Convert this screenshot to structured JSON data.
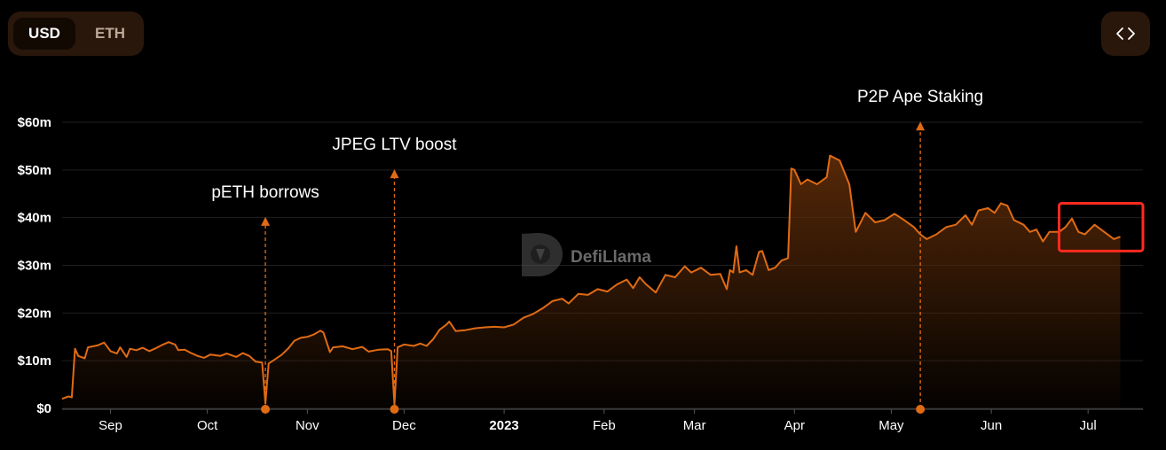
{
  "toggle": {
    "usd_label": "USD",
    "eth_label": "ETH",
    "selected": "USD"
  },
  "embed_icon": "code-brackets-icon",
  "watermark": {
    "text": "DefiLlama",
    "icon": "llama-logo-icon"
  },
  "colors": {
    "background": "#000000",
    "line": "#e06b14",
    "area_top": "#5a2a08",
    "highlight_box": "#ff2a1f"
  },
  "chart_data": {
    "type": "area",
    "y_ticks": [
      {
        "value": 0,
        "label": "$0"
      },
      {
        "value": 10,
        "label": "$10m"
      },
      {
        "value": 20,
        "label": "$20m"
      },
      {
        "value": 30,
        "label": "$30m"
      },
      {
        "value": 40,
        "label": "$40m"
      },
      {
        "value": 50,
        "label": "$50m"
      },
      {
        "value": 60,
        "label": "$60m"
      }
    ],
    "ylim": [
      0,
      60
    ],
    "x_range": [
      "2022-08-17",
      "2023-07-18"
    ],
    "x_ticks": [
      {
        "date": "2022-09-01",
        "label": "Sep",
        "bold": false
      },
      {
        "date": "2022-10-01",
        "label": "Oct",
        "bold": false
      },
      {
        "date": "2022-11-01",
        "label": "Nov",
        "bold": false
      },
      {
        "date": "2022-12-01",
        "label": "Dec",
        "bold": false
      },
      {
        "date": "2023-01-01",
        "label": "2023",
        "bold": true
      },
      {
        "date": "2023-02-01",
        "label": "Feb",
        "bold": false
      },
      {
        "date": "2023-03-01",
        "label": "Mar",
        "bold": false
      },
      {
        "date": "2023-04-01",
        "label": "Apr",
        "bold": false
      },
      {
        "date": "2023-05-01",
        "label": "May",
        "bold": false
      },
      {
        "date": "2023-06-01",
        "label": "Jun",
        "bold": false
      },
      {
        "date": "2023-07-01",
        "label": "Jul",
        "bold": false
      }
    ],
    "grid": true,
    "annotations": [
      {
        "date": "2022-10-19",
        "label": "pETH borrows",
        "label_level": 42
      },
      {
        "date": "2022-11-28",
        "label": "JPEG LTV boost",
        "label_level": 52
      },
      {
        "date": "2023-05-10",
        "label": "P2P Ape Staking",
        "label_level": 62
      }
    ],
    "highlight": {
      "from": "2023-06-22",
      "to": "2023-07-18",
      "ymin": 33,
      "ymax": 43
    },
    "series": [
      {
        "values": [
          [
            "2022-08-17",
            2.0
          ],
          [
            "2022-08-19",
            2.5
          ],
          [
            "2022-08-20",
            2.3
          ],
          [
            "2022-08-21",
            12.5
          ],
          [
            "2022-08-22",
            11.0
          ],
          [
            "2022-08-24",
            10.5
          ],
          [
            "2022-08-25",
            12.8
          ],
          [
            "2022-08-28",
            13.2
          ],
          [
            "2022-08-30",
            13.8
          ],
          [
            "2022-09-01",
            12.0
          ],
          [
            "2022-09-03",
            11.5
          ],
          [
            "2022-09-04",
            12.8
          ],
          [
            "2022-09-06",
            10.8
          ],
          [
            "2022-09-07",
            12.5
          ],
          [
            "2022-09-09",
            12.2
          ],
          [
            "2022-09-11",
            12.7
          ],
          [
            "2022-09-13",
            12.0
          ],
          [
            "2022-09-15",
            12.6
          ],
          [
            "2022-09-17",
            13.3
          ],
          [
            "2022-09-19",
            13.9
          ],
          [
            "2022-09-21",
            13.4
          ],
          [
            "2022-09-22",
            12.2
          ],
          [
            "2022-09-24",
            12.3
          ],
          [
            "2022-09-26",
            11.6
          ],
          [
            "2022-09-28",
            11.0
          ],
          [
            "2022-09-30",
            10.6
          ],
          [
            "2022-10-02",
            11.3
          ],
          [
            "2022-10-05",
            11.0
          ],
          [
            "2022-10-07",
            11.5
          ],
          [
            "2022-10-10",
            10.8
          ],
          [
            "2022-10-12",
            11.6
          ],
          [
            "2022-10-14",
            11.0
          ],
          [
            "2022-10-16",
            9.8
          ],
          [
            "2022-10-18",
            9.6
          ],
          [
            "2022-10-19",
            1.0
          ],
          [
            "2022-10-20",
            9.4
          ],
          [
            "2022-10-22",
            10.3
          ],
          [
            "2022-10-24",
            11.2
          ],
          [
            "2022-10-26",
            12.5
          ],
          [
            "2022-10-28",
            14.2
          ],
          [
            "2022-10-30",
            14.8
          ],
          [
            "2022-11-01",
            15.0
          ],
          [
            "2022-11-03",
            15.5
          ],
          [
            "2022-11-05",
            16.3
          ],
          [
            "2022-11-06",
            15.9
          ],
          [
            "2022-11-08",
            11.8
          ],
          [
            "2022-11-09",
            12.8
          ],
          [
            "2022-11-12",
            13.0
          ],
          [
            "2022-11-15",
            12.4
          ],
          [
            "2022-11-18",
            12.9
          ],
          [
            "2022-11-20",
            11.9
          ],
          [
            "2022-11-23",
            12.3
          ],
          [
            "2022-11-26",
            12.4
          ],
          [
            "2022-11-27",
            12.0
          ],
          [
            "2022-11-28",
            0.8
          ],
          [
            "2022-11-29",
            12.8
          ],
          [
            "2022-12-01",
            13.4
          ],
          [
            "2022-12-04",
            13.1
          ],
          [
            "2022-12-06",
            13.6
          ],
          [
            "2022-12-08",
            13.1
          ],
          [
            "2022-12-10",
            14.5
          ],
          [
            "2022-12-12",
            16.5
          ],
          [
            "2022-12-14",
            17.5
          ],
          [
            "2022-12-15",
            18.2
          ],
          [
            "2022-12-17",
            16.2
          ],
          [
            "2022-12-20",
            16.4
          ],
          [
            "2022-12-23",
            16.8
          ],
          [
            "2022-12-26",
            17.0
          ],
          [
            "2022-12-29",
            17.1
          ],
          [
            "2023-01-01",
            17.0
          ],
          [
            "2023-01-04",
            17.6
          ],
          [
            "2023-01-07",
            19.0
          ],
          [
            "2023-01-10",
            19.8
          ],
          [
            "2023-01-13",
            21.0
          ],
          [
            "2023-01-16",
            22.5
          ],
          [
            "2023-01-19",
            23.0
          ],
          [
            "2023-01-21",
            22.0
          ],
          [
            "2023-01-24",
            24.0
          ],
          [
            "2023-01-27",
            23.8
          ],
          [
            "2023-01-30",
            25.0
          ],
          [
            "2023-02-02",
            24.5
          ],
          [
            "2023-02-05",
            26.0
          ],
          [
            "2023-02-08",
            27.0
          ],
          [
            "2023-02-10",
            25.2
          ],
          [
            "2023-02-12",
            27.5
          ],
          [
            "2023-02-14",
            26.0
          ],
          [
            "2023-02-17",
            24.3
          ],
          [
            "2023-02-20",
            28.0
          ],
          [
            "2023-02-23",
            27.5
          ],
          [
            "2023-02-26",
            29.8
          ],
          [
            "2023-02-28",
            28.5
          ],
          [
            "2023-03-03",
            29.5
          ],
          [
            "2023-03-06",
            28.0
          ],
          [
            "2023-03-09",
            28.2
          ],
          [
            "2023-03-11",
            25.0
          ],
          [
            "2023-03-12",
            29.0
          ],
          [
            "2023-03-13",
            28.5
          ],
          [
            "2023-03-14",
            34.0
          ],
          [
            "2023-03-15",
            28.5
          ],
          [
            "2023-03-17",
            29.0
          ],
          [
            "2023-03-19",
            28.0
          ],
          [
            "2023-03-21",
            32.8
          ],
          [
            "2023-03-22",
            33.0
          ],
          [
            "2023-03-24",
            29.0
          ],
          [
            "2023-03-26",
            29.5
          ],
          [
            "2023-03-28",
            31.0
          ],
          [
            "2023-03-30",
            31.5
          ],
          [
            "2023-03-31",
            50.3
          ],
          [
            "2023-04-01",
            50.0
          ],
          [
            "2023-04-03",
            47.0
          ],
          [
            "2023-04-05",
            48.0
          ],
          [
            "2023-04-08",
            47.0
          ],
          [
            "2023-04-11",
            48.5
          ],
          [
            "2023-04-12",
            53.0
          ],
          [
            "2023-04-15",
            52.0
          ],
          [
            "2023-04-18",
            47.0
          ],
          [
            "2023-04-20",
            37.0
          ],
          [
            "2023-04-23",
            41.0
          ],
          [
            "2023-04-26",
            39.0
          ],
          [
            "2023-04-29",
            39.5
          ],
          [
            "2023-05-02",
            40.8
          ],
          [
            "2023-05-05",
            39.5
          ],
          [
            "2023-05-08",
            38.0
          ],
          [
            "2023-05-10",
            36.5
          ],
          [
            "2023-05-12",
            35.5
          ],
          [
            "2023-05-15",
            36.5
          ],
          [
            "2023-05-18",
            38.0
          ],
          [
            "2023-05-21",
            38.5
          ],
          [
            "2023-05-24",
            40.5
          ],
          [
            "2023-05-26",
            38.5
          ],
          [
            "2023-05-28",
            41.5
          ],
          [
            "2023-05-31",
            42.0
          ],
          [
            "2023-06-02",
            41.0
          ],
          [
            "2023-06-04",
            43.0
          ],
          [
            "2023-06-06",
            42.5
          ],
          [
            "2023-06-08",
            39.5
          ],
          [
            "2023-06-11",
            38.5
          ],
          [
            "2023-06-13",
            37.0
          ],
          [
            "2023-06-15",
            37.5
          ],
          [
            "2023-06-17",
            35.0
          ],
          [
            "2023-06-19",
            37.0
          ],
          [
            "2023-06-22",
            37.0
          ],
          [
            "2023-06-24",
            38.0
          ],
          [
            "2023-06-26",
            39.8
          ],
          [
            "2023-06-28",
            37.0
          ],
          [
            "2023-06-30",
            36.5
          ],
          [
            "2023-07-03",
            38.5
          ],
          [
            "2023-07-06",
            37.0
          ],
          [
            "2023-07-09",
            35.5
          ],
          [
            "2023-07-11",
            36.0
          ]
        ]
      }
    ]
  }
}
